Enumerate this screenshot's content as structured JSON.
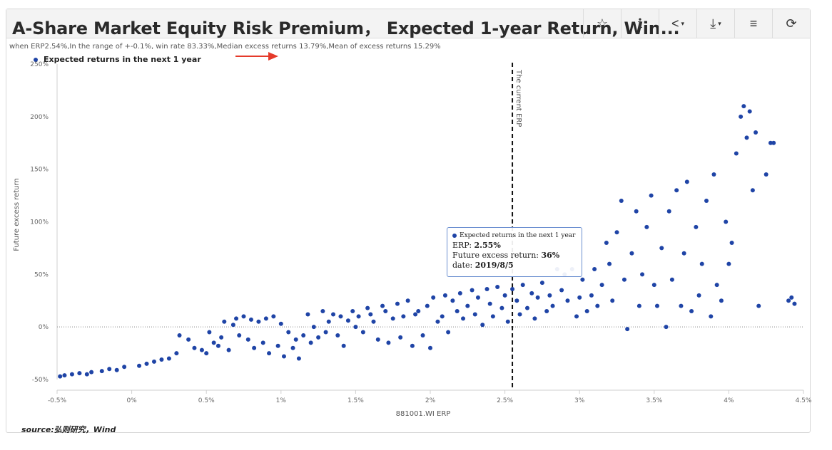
{
  "header": {
    "title": "A-Share Market Equity Risk Premium， Expected 1-year Return, Win...",
    "buttons": [
      {
        "name": "favorite-button",
        "icon": "star-outline-icon",
        "glyph": "☆",
        "menu": false
      },
      {
        "name": "info-button",
        "icon": "info-icon",
        "glyph": "i",
        "menu": false
      },
      {
        "name": "share-button",
        "icon": "share-icon",
        "glyph": "<",
        "menu": true
      },
      {
        "name": "download-button",
        "icon": "download-icon",
        "glyph": "⤓",
        "menu": true
      },
      {
        "name": "settings-button",
        "icon": "sliders-icon",
        "glyph": "≡",
        "menu": false
      },
      {
        "name": "refresh-button",
        "icon": "refresh-icon",
        "glyph": "⟳",
        "menu": false
      }
    ]
  },
  "subtitle": "when ERP2.54%,In the range of +-0.1%,  win rate 83.33%,Median excess returns 13.79%,Mean of excess returns 15.29%",
  "annotation_arrow_color": "#e53a2a",
  "source": "source:弘则研究，Wind",
  "tooltip": {
    "series": "Expected returns in the next 1 year",
    "erp_label": "ERP: ",
    "erp_value": "2.55%",
    "ret_label": "Future excess return: ",
    "ret_value": "36%",
    "date_label": "date: ",
    "date_value": "2019/8/5"
  },
  "chart_data": {
    "type": "scatter",
    "title": "A-Share Market Equity Risk Premium， Expected 1-year Return, Win...",
    "xlabel": "881001.WI ERP",
    "ylabel": "Future excess return",
    "xlim": [
      -0.5,
      4.5
    ],
    "ylim": [
      -50,
      250
    ],
    "x_ticks": [
      "-0.5%",
      "0%",
      "0.5%",
      "1%",
      "1.5%",
      "2%",
      "2.5%",
      "3%",
      "3.5%",
      "4%",
      "4.5%"
    ],
    "y_ticks": [
      "-50%",
      "0%",
      "50%",
      "100%",
      "150%",
      "200%",
      "250%"
    ],
    "legend": "top-left",
    "grid": false,
    "reference_line": {
      "x": 2.55,
      "label": "The current ERP",
      "style": "dashed"
    },
    "zero_line": {
      "y": 0,
      "style": "dotted"
    },
    "series_color": "#1f44a6",
    "series": [
      {
        "name": "Expected returns in the next 1 year",
        "points": [
          [
            -0.48,
            -47
          ],
          [
            -0.45,
            -46
          ],
          [
            -0.4,
            -45
          ],
          [
            -0.35,
            -44
          ],
          [
            -0.3,
            -45
          ],
          [
            -0.27,
            -43
          ],
          [
            -0.2,
            -42
          ],
          [
            -0.15,
            -40
          ],
          [
            -0.1,
            -41
          ],
          [
            -0.05,
            -38
          ],
          [
            0.05,
            -37
          ],
          [
            0.1,
            -35
          ],
          [
            0.15,
            -33
          ],
          [
            0.2,
            -31
          ],
          [
            0.25,
            -30
          ],
          [
            0.3,
            -25
          ],
          [
            0.32,
            -8
          ],
          [
            0.38,
            -12
          ],
          [
            0.42,
            -20
          ],
          [
            0.47,
            -22
          ],
          [
            0.5,
            -25
          ],
          [
            0.52,
            -5
          ],
          [
            0.55,
            -15
          ],
          [
            0.58,
            -18
          ],
          [
            0.6,
            -10
          ],
          [
            0.62,
            5
          ],
          [
            0.65,
            -22
          ],
          [
            0.68,
            2
          ],
          [
            0.7,
            8
          ],
          [
            0.72,
            -8
          ],
          [
            0.75,
            10
          ],
          [
            0.78,
            -12
          ],
          [
            0.8,
            7
          ],
          [
            0.82,
            -20
          ],
          [
            0.85,
            5
          ],
          [
            0.88,
            -15
          ],
          [
            0.9,
            8
          ],
          [
            0.92,
            -25
          ],
          [
            0.95,
            10
          ],
          [
            0.98,
            -18
          ],
          [
            1.0,
            3
          ],
          [
            1.02,
            -28
          ],
          [
            1.05,
            -5
          ],
          [
            1.08,
            -20
          ],
          [
            1.1,
            -12
          ],
          [
            1.12,
            -30
          ],
          [
            1.15,
            -8
          ],
          [
            1.18,
            12
          ],
          [
            1.2,
            -15
          ],
          [
            1.22,
            0
          ],
          [
            1.25,
            -10
          ],
          [
            1.28,
            15
          ],
          [
            1.3,
            -5
          ],
          [
            1.32,
            5
          ],
          [
            1.35,
            12
          ],
          [
            1.38,
            -8
          ],
          [
            1.4,
            10
          ],
          [
            1.42,
            -18
          ],
          [
            1.45,
            6
          ],
          [
            1.48,
            15
          ],
          [
            1.5,
            0
          ],
          [
            1.52,
            10
          ],
          [
            1.55,
            -5
          ],
          [
            1.58,
            18
          ],
          [
            1.6,
            12
          ],
          [
            1.62,
            5
          ],
          [
            1.65,
            -12
          ],
          [
            1.68,
            20
          ],
          [
            1.7,
            15
          ],
          [
            1.72,
            -15
          ],
          [
            1.75,
            8
          ],
          [
            1.78,
            22
          ],
          [
            1.8,
            -10
          ],
          [
            1.82,
            10
          ],
          [
            1.85,
            25
          ],
          [
            1.88,
            -18
          ],
          [
            1.9,
            12
          ],
          [
            1.92,
            15
          ],
          [
            1.95,
            -8
          ],
          [
            1.98,
            20
          ],
          [
            2.0,
            -20
          ],
          [
            2.02,
            28
          ],
          [
            2.05,
            5
          ],
          [
            2.08,
            10
          ],
          [
            2.1,
            30
          ],
          [
            2.12,
            -5
          ],
          [
            2.15,
            25
          ],
          [
            2.18,
            15
          ],
          [
            2.2,
            32
          ],
          [
            2.22,
            8
          ],
          [
            2.25,
            20
          ],
          [
            2.28,
            35
          ],
          [
            2.3,
            12
          ],
          [
            2.32,
            28
          ],
          [
            2.35,
            2
          ],
          [
            2.38,
            36
          ],
          [
            2.4,
            22
          ],
          [
            2.42,
            10
          ],
          [
            2.45,
            38
          ],
          [
            2.48,
            18
          ],
          [
            2.5,
            30
          ],
          [
            2.52,
            5
          ],
          [
            2.55,
            36
          ],
          [
            2.58,
            25
          ],
          [
            2.6,
            12
          ],
          [
            2.62,
            40
          ],
          [
            2.65,
            18
          ],
          [
            2.68,
            32
          ],
          [
            2.7,
            8
          ],
          [
            2.72,
            28
          ],
          [
            2.75,
            42
          ],
          [
            2.78,
            15
          ],
          [
            2.8,
            30
          ],
          [
            2.82,
            20
          ],
          [
            2.85,
            55
          ],
          [
            2.88,
            35
          ],
          [
            2.9,
            50
          ],
          [
            2.92,
            25
          ],
          [
            2.95,
            55
          ],
          [
            2.98,
            10
          ],
          [
            3.0,
            28
          ],
          [
            3.02,
            45
          ],
          [
            3.05,
            15
          ],
          [
            3.08,
            30
          ],
          [
            3.1,
            55
          ],
          [
            3.12,
            20
          ],
          [
            3.15,
            40
          ],
          [
            3.18,
            80
          ],
          [
            3.2,
            60
          ],
          [
            3.22,
            25
          ],
          [
            3.25,
            90
          ],
          [
            3.28,
            120
          ],
          [
            3.3,
            45
          ],
          [
            3.32,
            -2
          ],
          [
            3.35,
            70
          ],
          [
            3.38,
            110
          ],
          [
            3.4,
            20
          ],
          [
            3.42,
            50
          ],
          [
            3.45,
            95
          ],
          [
            3.48,
            125
          ],
          [
            3.5,
            40
          ],
          [
            3.52,
            20
          ],
          [
            3.55,
            75
          ],
          [
            3.58,
            0
          ],
          [
            3.6,
            110
          ],
          [
            3.62,
            45
          ],
          [
            3.65,
            130
          ],
          [
            3.68,
            20
          ],
          [
            3.7,
            70
          ],
          [
            3.72,
            138
          ],
          [
            3.75,
            15
          ],
          [
            3.78,
            95
          ],
          [
            3.8,
            30
          ],
          [
            3.82,
            60
          ],
          [
            3.85,
            120
          ],
          [
            3.88,
            10
          ],
          [
            3.9,
            145
          ],
          [
            3.92,
            40
          ],
          [
            3.95,
            25
          ],
          [
            3.98,
            100
          ],
          [
            4.0,
            60
          ],
          [
            4.02,
            80
          ],
          [
            4.05,
            165
          ],
          [
            4.08,
            200
          ],
          [
            4.1,
            210
          ],
          [
            4.12,
            180
          ],
          [
            4.14,
            205
          ],
          [
            4.16,
            130
          ],
          [
            4.18,
            185
          ],
          [
            4.2,
            20
          ],
          [
            4.25,
            145
          ],
          [
            4.28,
            175
          ],
          [
            4.3,
            175
          ],
          [
            4.4,
            25
          ],
          [
            4.42,
            28
          ],
          [
            4.44,
            22
          ]
        ]
      }
    ]
  }
}
